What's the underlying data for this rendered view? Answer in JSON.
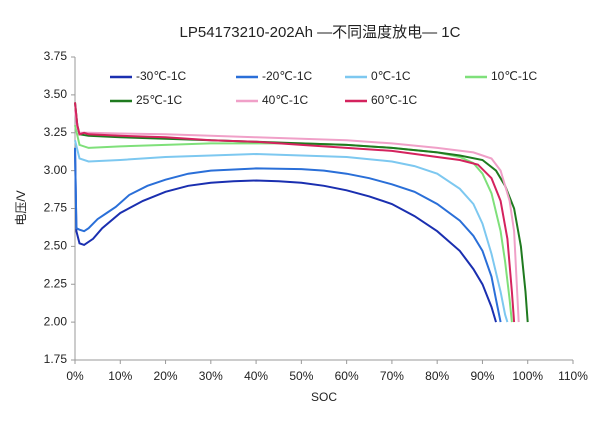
{
  "chart_data": {
    "type": "line",
    "title": "LP54173210-202Ah —不同温度放电— 1C",
    "x_label": "SOC",
    "y_label": "电压/V",
    "xlim": [
      0,
      110
    ],
    "xticks": [
      {
        "value": 0,
        "label": "0%"
      },
      {
        "value": 10,
        "label": "10%"
      },
      {
        "value": 20,
        "label": "20%"
      },
      {
        "value": 30,
        "label": "30%"
      },
      {
        "value": 40,
        "label": "40%"
      },
      {
        "value": 50,
        "label": "50%"
      },
      {
        "value": 60,
        "label": "60%"
      },
      {
        "value": 70,
        "label": "70%"
      },
      {
        "value": 80,
        "label": "80%"
      },
      {
        "value": 90,
        "label": "90%"
      },
      {
        "value": 100,
        "label": "100%"
      },
      {
        "value": 110,
        "label": "110%"
      }
    ],
    "ylim": [
      1.75,
      3.75
    ],
    "yticks": [
      1.75,
      {
        "value": 2,
        "label": "2.00"
      },
      2.25,
      {
        "value": 2.5,
        "label": "2.50"
      },
      2.75,
      {
        "value": 3,
        "label": "3.00"
      },
      3.25,
      {
        "value": 3.5,
        "label": "3.50"
      },
      3.75
    ],
    "grid": false,
    "legend": "top-left",
    "series": [
      {
        "name": "-30℃-1C",
        "color": "#1a2fb0",
        "x": [
          0,
          0.3,
          1,
          2,
          4,
          6,
          10,
          15,
          20,
          25,
          30,
          35,
          40,
          45,
          50,
          55,
          60,
          65,
          70,
          75,
          80,
          85,
          88,
          90,
          92,
          93
        ],
        "values": [
          3.15,
          2.6,
          2.52,
          2.51,
          2.55,
          2.62,
          2.72,
          2.8,
          2.86,
          2.9,
          2.92,
          2.93,
          2.935,
          2.93,
          2.92,
          2.9,
          2.87,
          2.83,
          2.78,
          2.7,
          2.6,
          2.47,
          2.35,
          2.25,
          2.1,
          2.0
        ]
      },
      {
        "name": "-20℃-1C",
        "color": "#2a6fd8",
        "x": [
          0,
          0.3,
          1,
          2,
          3,
          5,
          7,
          9,
          12,
          16,
          20,
          25,
          30,
          40,
          50,
          55,
          60,
          65,
          70,
          75,
          80,
          85,
          88,
          90,
          92,
          93,
          94
        ],
        "values": [
          3.15,
          2.62,
          2.61,
          2.6,
          2.62,
          2.68,
          2.72,
          2.76,
          2.84,
          2.9,
          2.94,
          2.98,
          3.0,
          3.015,
          3.01,
          3.0,
          2.98,
          2.95,
          2.91,
          2.86,
          2.78,
          2.67,
          2.57,
          2.47,
          2.3,
          2.15,
          2.0
        ]
      },
      {
        "name": "0℃-1C",
        "color": "#7dc8f0",
        "x": [
          0,
          1,
          3,
          10,
          20,
          30,
          40,
          50,
          60,
          70,
          75,
          80,
          85,
          88,
          90,
          92,
          94,
          95,
          95.5
        ],
        "values": [
          3.2,
          3.08,
          3.06,
          3.07,
          3.09,
          3.1,
          3.11,
          3.1,
          3.09,
          3.06,
          3.03,
          2.98,
          2.88,
          2.78,
          2.65,
          2.45,
          2.2,
          2.05,
          2.0
        ]
      },
      {
        "name": "10℃-1C",
        "color": "#7fe07a",
        "x": [
          0,
          1,
          3,
          10,
          20,
          30,
          40,
          50,
          60,
          70,
          80,
          85,
          88,
          90,
          92,
          94,
          95,
          96,
          96.5
        ],
        "values": [
          3.3,
          3.17,
          3.15,
          3.16,
          3.17,
          3.18,
          3.18,
          3.18,
          3.17,
          3.15,
          3.12,
          3.09,
          3.05,
          2.98,
          2.85,
          2.6,
          2.4,
          2.15,
          2.0
        ]
      },
      {
        "name": "25℃-1C",
        "color": "#1f7a1f",
        "x": [
          0,
          0.5,
          1,
          3,
          10,
          20,
          30,
          40,
          50,
          60,
          70,
          80,
          85,
          90,
          93,
          95,
          97,
          98.5,
          99.5,
          100
        ],
        "values": [
          3.45,
          3.3,
          3.24,
          3.23,
          3.22,
          3.21,
          3.2,
          3.19,
          3.18,
          3.17,
          3.15,
          3.12,
          3.1,
          3.07,
          3.0,
          2.9,
          2.75,
          2.5,
          2.2,
          2.0
        ]
      },
      {
        "name": "40℃-1C",
        "color": "#f0a0c8",
        "x": [
          0,
          0.5,
          1,
          3,
          10,
          20,
          30,
          40,
          50,
          60,
          70,
          80,
          88,
          92,
          94,
          96,
          97,
          97.5,
          98
        ],
        "values": [
          3.4,
          3.28,
          3.25,
          3.25,
          3.245,
          3.24,
          3.23,
          3.22,
          3.21,
          3.2,
          3.18,
          3.15,
          3.12,
          3.08,
          3.0,
          2.8,
          2.6,
          2.3,
          2.0
        ]
      },
      {
        "name": "60℃-1C",
        "color": "#d4235e",
        "x": [
          0,
          0.5,
          1,
          2,
          3,
          10,
          20,
          30,
          40,
          50,
          60,
          70,
          80,
          85,
          89,
          92,
          94,
          95.5,
          96.5,
          97
        ],
        "values": [
          3.45,
          3.3,
          3.24,
          3.25,
          3.24,
          3.23,
          3.22,
          3.2,
          3.19,
          3.17,
          3.15,
          3.13,
          3.09,
          3.07,
          3.04,
          2.95,
          2.8,
          2.55,
          2.2,
          2.0
        ]
      }
    ]
  }
}
